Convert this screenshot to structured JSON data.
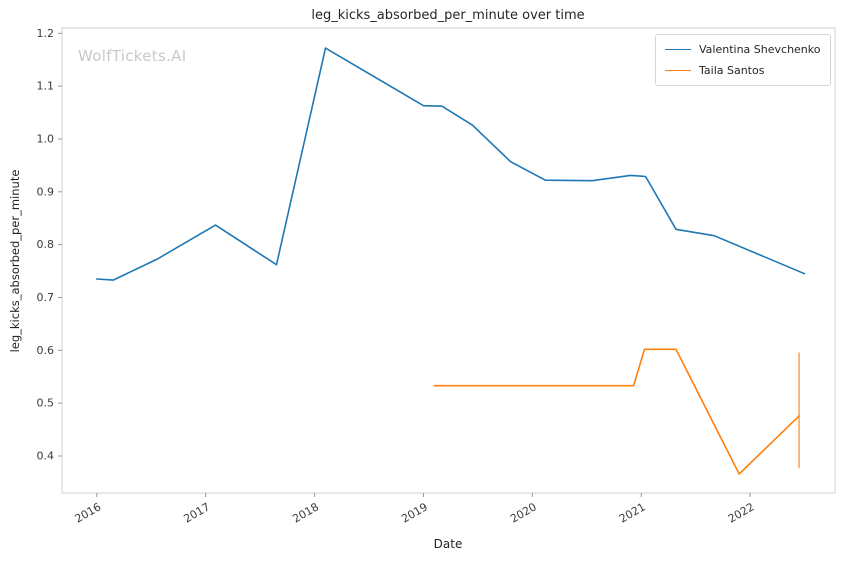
{
  "title": "leg_kicks_absorbed_per_minute over time",
  "watermark": "WolfTickets.AI",
  "chart_data": {
    "type": "line",
    "title": "leg_kicks_absorbed_per_minute over time",
    "xlabel": "Date",
    "ylabel": "leg_kicks_absorbed_per_minute",
    "x_ticks": [
      2016,
      2017,
      2018,
      2019,
      2020,
      2021,
      2022
    ],
    "y_ticks": [
      0.4,
      0.5,
      0.6,
      0.7,
      0.8,
      0.9,
      1.0,
      1.1,
      1.2
    ],
    "xlim": [
      2015.68,
      2022.78
    ],
    "ylim": [
      0.33,
      1.21
    ],
    "grid": false,
    "legend_position": "top-right",
    "series": [
      {
        "name": "Valentina Shevchenko",
        "color": "#1f77b4",
        "x": [
          2016.0,
          2016.15,
          2016.55,
          2017.09,
          2017.65,
          2018.1,
          2019.0,
          2019.17,
          2019.45,
          2019.8,
          2020.12,
          2020.55,
          2020.9,
          2021.04,
          2021.32,
          2021.67,
          2022.5
        ],
        "y": [
          0.735,
          0.733,
          0.772,
          0.837,
          0.762,
          1.172,
          1.063,
          1.062,
          1.026,
          0.957,
          0.922,
          0.921,
          0.931,
          0.929,
          0.829,
          0.817,
          0.745
        ]
      },
      {
        "name": "Taila Santos",
        "color": "#ff7f0e",
        "x": [
          2019.1,
          2020.93,
          2021.03,
          2021.32,
          2021.9,
          2022.45
        ],
        "y": [
          0.533,
          0.533,
          0.602,
          0.602,
          0.366,
          0.476
        ],
        "error_bar": {
          "x": 2022.45,
          "y_min": 0.377,
          "y_max": 0.596
        }
      }
    ]
  }
}
